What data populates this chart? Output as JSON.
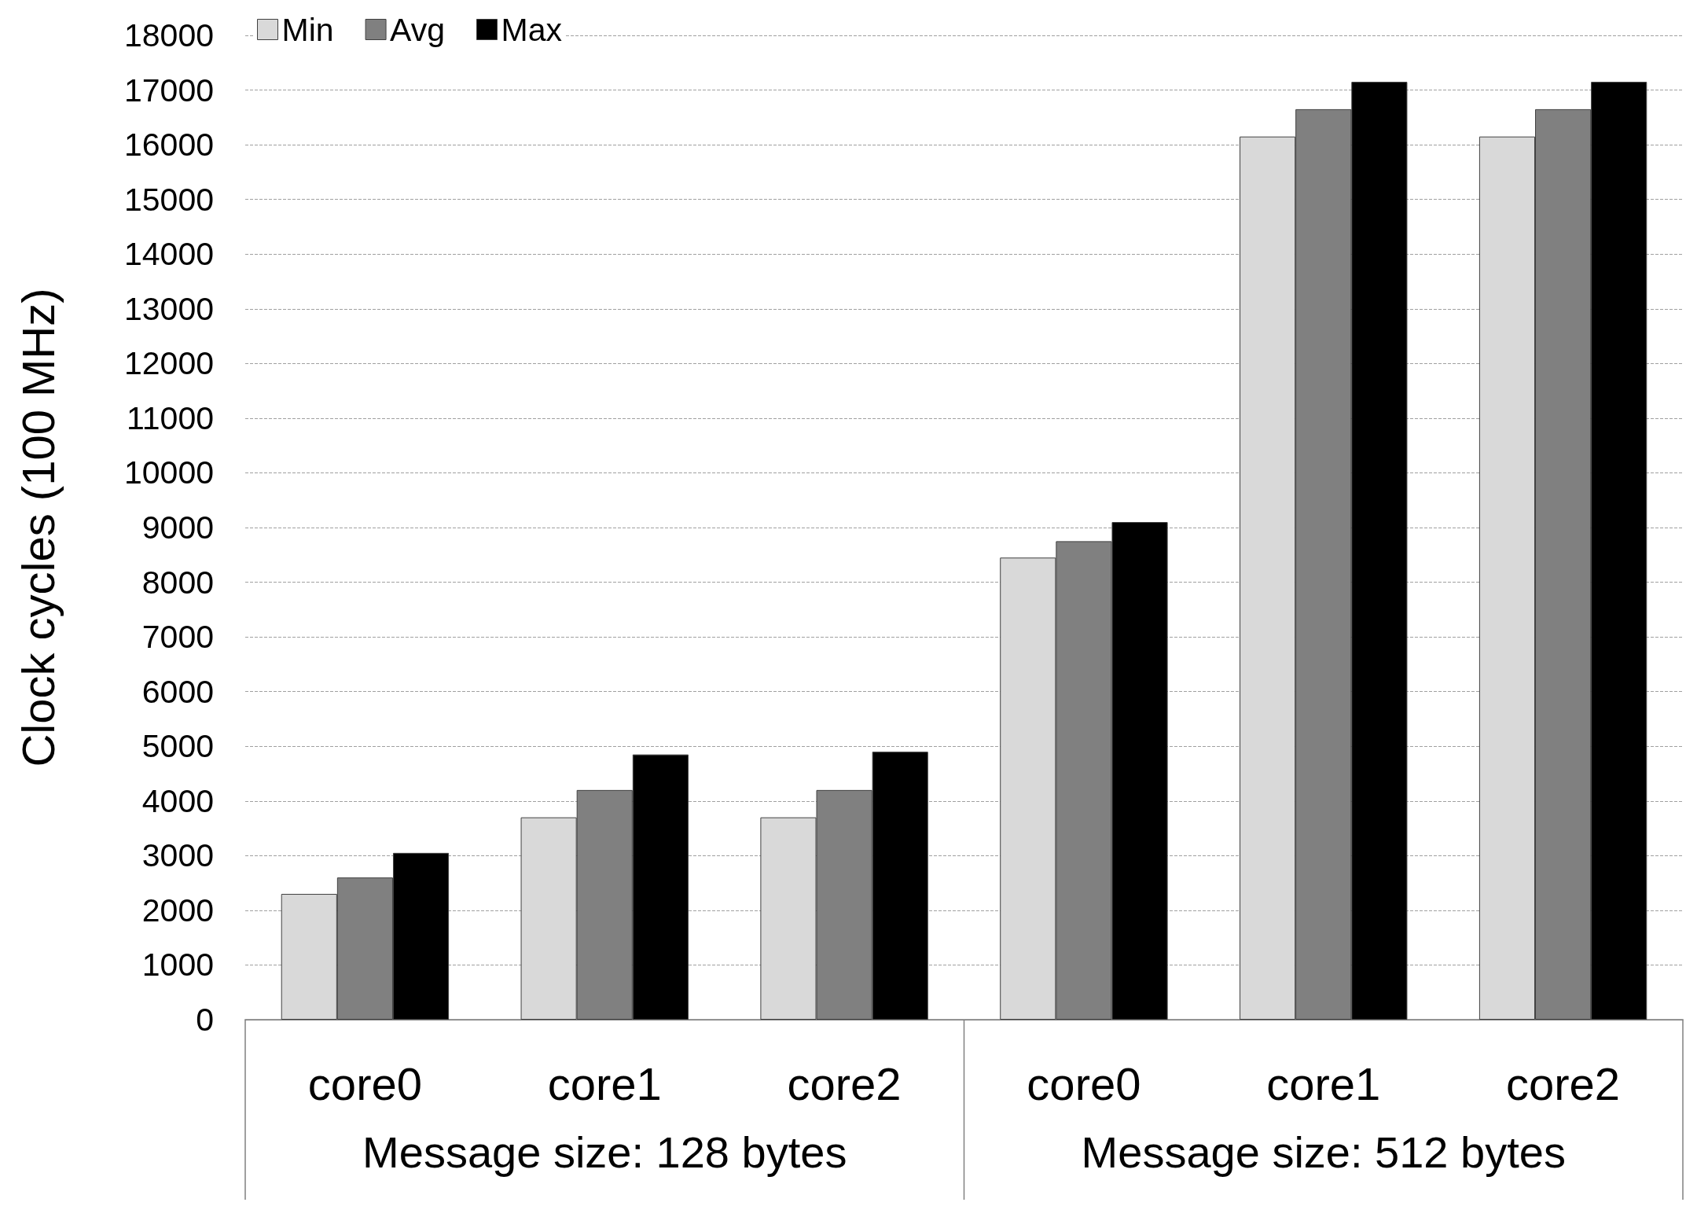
{
  "chart_data": {
    "type": "bar",
    "ylabel": "Clock cycles (100 MHz)",
    "categories": [
      "core0",
      "core1",
      "core2",
      "core0",
      "core1",
      "core2"
    ],
    "annotations": [
      "Message size: 128 bytes",
      "Message size: 512 bytes"
    ],
    "series": [
      {
        "name": "Min",
        "color": "#d9d9d9",
        "values": [
          2300,
          3700,
          3700,
          8450,
          16150,
          16150
        ]
      },
      {
        "name": "Avg",
        "color": "#808080",
        "values": [
          2600,
          4200,
          4200,
          8750,
          16650,
          16650
        ]
      },
      {
        "name": "Max",
        "color": "#000000",
        "values": [
          3050,
          4850,
          4900,
          9100,
          17150,
          17150
        ]
      }
    ],
    "ylim": [
      0,
      18000
    ],
    "yticks": [
      0,
      1000,
      2000,
      3000,
      4000,
      5000,
      6000,
      7000,
      8000,
      9000,
      10000,
      11000,
      12000,
      13000,
      14000,
      15000,
      16000,
      17000,
      18000
    ],
    "grid": "y",
    "legend": "top left"
  }
}
